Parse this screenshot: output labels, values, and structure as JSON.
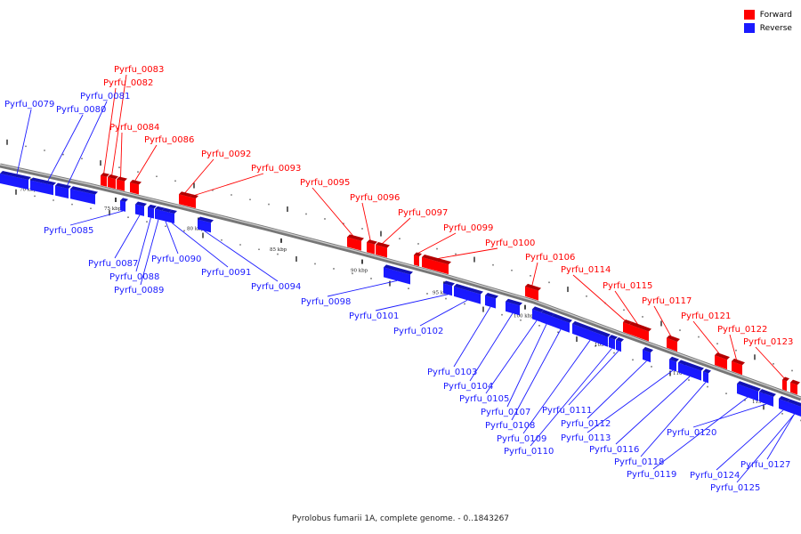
{
  "legend": {
    "forward_label": "Forward",
    "reverse_label": "Reverse",
    "forward_color": "#ff0000",
    "reverse_color": "#1a1aff"
  },
  "caption": "Pyrolobus fumarii 1A, complete genome. - 0..1843267",
  "scale_labels": [
    "70 kbp",
    "75 kbp",
    "80 kbp",
    "85 kbp",
    "90 kbp",
    "95 kbp",
    "100 kbp",
    "105 kbp",
    "110 kbp",
    "115 kbp"
  ],
  "forward_genes": [
    "Pyrfu_0083",
    "Pyrfu_0082",
    "Pyrfu_0084",
    "Pyrfu_0086",
    "Pyrfu_0092",
    "Pyrfu_0093",
    "Pyrfu_0095",
    "Pyrfu_0096",
    "Pyrfu_0097",
    "Pyrfu_0099",
    "Pyrfu_0100",
    "Pyrfu_0106",
    "Pyrfu_0114",
    "Pyrfu_0115",
    "Pyrfu_0117",
    "Pyrfu_0121",
    "Pyrfu_0122",
    "Pyrfu_0123"
  ],
  "reverse_genes": [
    "Pyrfu_0079",
    "Pyrfu_0080",
    "Pyrfu_0081",
    "Pyrfu_0085",
    "Pyrfu_0087",
    "Pyrfu_0088",
    "Pyrfu_0089",
    "Pyrfu_0090",
    "Pyrfu_0091",
    "Pyrfu_0094",
    "Pyrfu_0098",
    "Pyrfu_0101",
    "Pyrfu_0102",
    "Pyrfu_0103",
    "Pyrfu_0104",
    "Pyrfu_0105",
    "Pyrfu_0107",
    "Pyrfu_0108",
    "Pyrfu_0109",
    "Pyrfu_0110",
    "Pyrfu_0111",
    "Pyrfu_0112",
    "Pyrfu_0113",
    "Pyrfu_0116",
    "Pyrfu_0118",
    "Pyrfu_0119",
    "Pyrfu_0120",
    "Pyrfu_0124",
    "Pyrfu_0125",
    "Pyrfu_0127"
  ]
}
